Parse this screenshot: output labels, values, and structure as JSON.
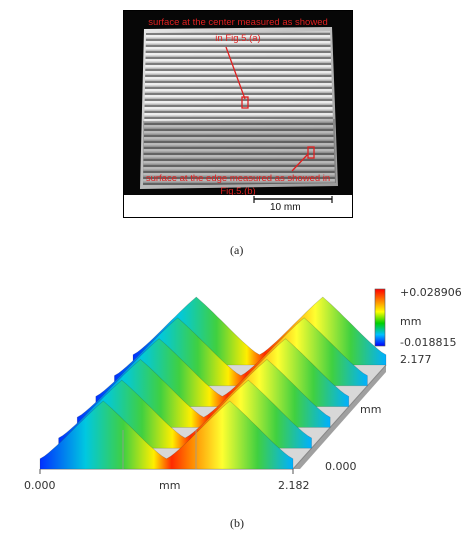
{
  "panel_a": {
    "annotation_center": [
      "surface at the center measured as showed",
      "in Fig.5.(a)"
    ],
    "annotation_edge": [
      "surface at the edge measured as showed in",
      "Fig.5.(b)"
    ],
    "scale_bar_label": "10 mm",
    "caption": "(a)"
  },
  "panel_b": {
    "color_scale": {
      "max": "+0.028906",
      "unit": "mm",
      "min": "-0.018815"
    },
    "y_axis": {
      "max": "2.177",
      "unit": "mm",
      "min": "0.000"
    },
    "x_axis": {
      "min": "0.000",
      "unit": "mm",
      "max": "2.182"
    },
    "caption": "(b)",
    "colormap": [
      "#0000ff",
      "#00c0ff",
      "#00d000",
      "#ffff00",
      "#ff8000",
      "#ff0000"
    ]
  }
}
